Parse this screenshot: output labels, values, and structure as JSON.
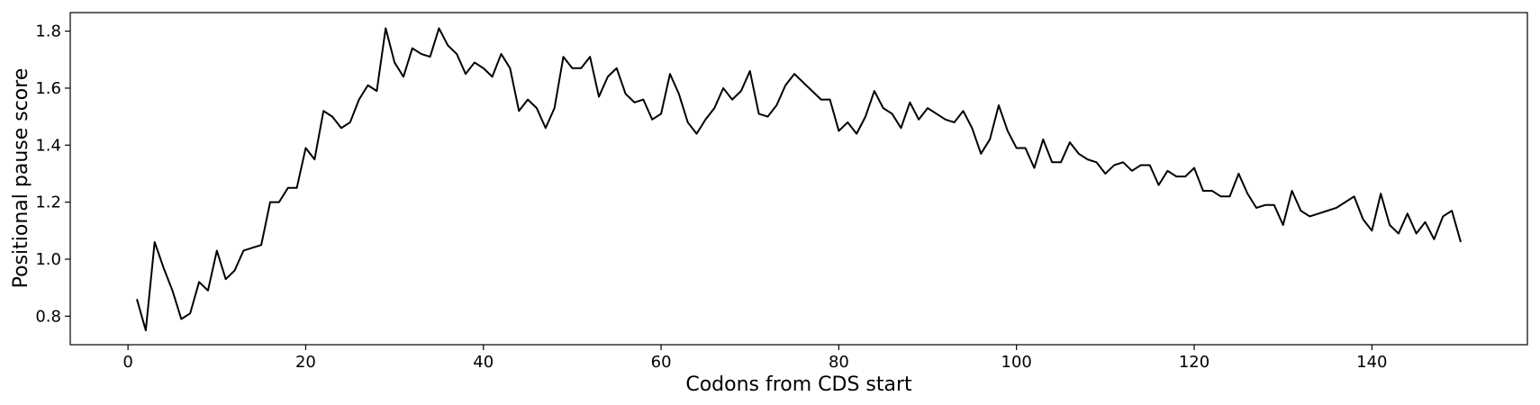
{
  "chart_data": {
    "type": "line",
    "title": "",
    "xlabel": "Codons from CDS start",
    "ylabel": "Positional pause score",
    "xlim": [
      -6.5,
      157.5
    ],
    "ylim": [
      0.7,
      1.865
    ],
    "xticks": [
      0,
      20,
      40,
      60,
      80,
      100,
      120,
      140
    ],
    "yticks": [
      0.8,
      1.0,
      1.2,
      1.4,
      1.6,
      1.8
    ],
    "xtick_labels": [
      "0",
      "20",
      "40",
      "60",
      "80",
      "100",
      "120",
      "140"
    ],
    "ytick_labels": [
      "0.8",
      "1.0",
      "1.2",
      "1.4",
      "1.6",
      "1.8"
    ],
    "grid": false,
    "line_color": "#000000",
    "series": [
      {
        "x": [
          1,
          2,
          3,
          4,
          5,
          6,
          7,
          8,
          9,
          10,
          11,
          12,
          13,
          14,
          15,
          16,
          17,
          18,
          19,
          20,
          21,
          22,
          23,
          24,
          25,
          26,
          27,
          28,
          29,
          30,
          31,
          32,
          33,
          34,
          35,
          36,
          37,
          38,
          39,
          40,
          41,
          42,
          43,
          44,
          45,
          46,
          47,
          48,
          49,
          50,
          51,
          52,
          53,
          54,
          55,
          56,
          57,
          58,
          59,
          60,
          61,
          62,
          63,
          64,
          65,
          66,
          67,
          68,
          69,
          70,
          71,
          72,
          73,
          74,
          75,
          76,
          77,
          78,
          79,
          80,
          81,
          82,
          83,
          84,
          85,
          86,
          87,
          88,
          89,
          90,
          91,
          92,
          93,
          94,
          95,
          96,
          97,
          98,
          99,
          100,
          101,
          102,
          103,
          104,
          105,
          106,
          107,
          108,
          109,
          110,
          111,
          112,
          113,
          114,
          115,
          116,
          117,
          118,
          119,
          120,
          121,
          122,
          123,
          124,
          125,
          126,
          127,
          128,
          129,
          130,
          131,
          132,
          133,
          134,
          135,
          136,
          137,
          138,
          139,
          140,
          141,
          142,
          143,
          144,
          145,
          146,
          147,
          148,
          149,
          150
        ],
        "values": [
          0.86,
          0.75,
          1.06,
          0.97,
          0.89,
          0.79,
          0.81,
          0.92,
          0.89,
          1.03,
          0.93,
          0.96,
          1.03,
          1.04,
          1.05,
          1.2,
          1.2,
          1.25,
          1.25,
          1.39,
          1.35,
          1.52,
          1.5,
          1.46,
          1.48,
          1.56,
          1.61,
          1.59,
          1.81,
          1.69,
          1.64,
          1.74,
          1.72,
          1.71,
          1.81,
          1.75,
          1.72,
          1.65,
          1.69,
          1.67,
          1.64,
          1.72,
          1.67,
          1.52,
          1.56,
          1.53,
          1.46,
          1.53,
          1.71,
          1.67,
          1.67,
          1.71,
          1.57,
          1.64,
          1.67,
          1.58,
          1.55,
          1.56,
          1.49,
          1.51,
          1.65,
          1.58,
          1.48,
          1.44,
          1.49,
          1.53,
          1.6,
          1.56,
          1.59,
          1.66,
          1.51,
          1.5,
          1.54,
          1.61,
          1.65,
          1.62,
          1.59,
          1.56,
          1.56,
          1.45,
          1.48,
          1.44,
          1.5,
          1.59,
          1.53,
          1.51,
          1.46,
          1.55,
          1.49,
          1.53,
          1.51,
          1.49,
          1.48,
          1.52,
          1.46,
          1.37,
          1.42,
          1.54,
          1.45,
          1.39,
          1.39,
          1.32,
          1.42,
          1.34,
          1.34,
          1.41,
          1.37,
          1.35,
          1.34,
          1.3,
          1.33,
          1.34,
          1.31,
          1.33,
          1.33,
          1.26,
          1.31,
          1.29,
          1.29,
          1.32,
          1.24,
          1.24,
          1.22,
          1.22,
          1.3,
          1.23,
          1.18,
          1.19,
          1.19,
          1.12,
          1.24,
          1.17,
          1.15,
          1.16,
          1.17,
          1.18,
          1.2,
          1.22,
          1.14,
          1.1,
          1.23,
          1.12,
          1.09,
          1.16,
          1.09,
          1.13,
          1.07,
          1.15,
          1.17,
          1.06
        ]
      }
    ]
  }
}
